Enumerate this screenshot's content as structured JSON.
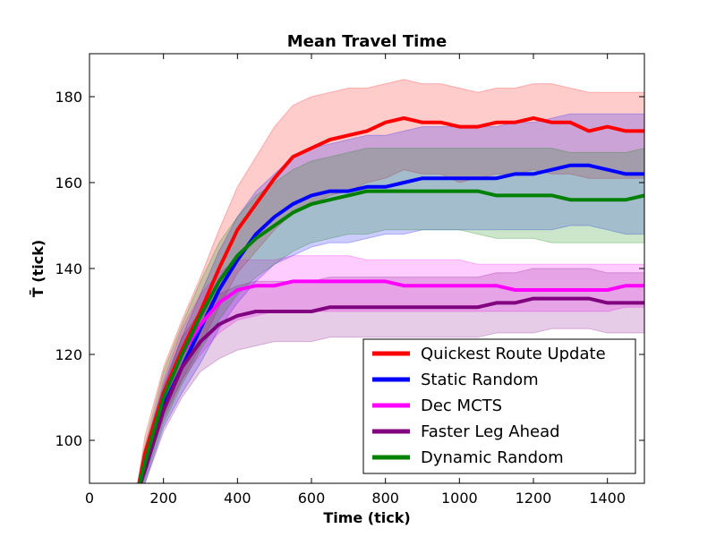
{
  "chart_data": {
    "type": "line",
    "title": "Mean Travel Time",
    "xlabel": "Time (tick)",
    "ylabel": "T̄  (tick)",
    "xlim": [
      0,
      1500
    ],
    "ylim": [
      90,
      190
    ],
    "xticks": [
      0,
      200,
      400,
      600,
      800,
      1000,
      1200,
      1400
    ],
    "yticks": [
      100,
      120,
      140,
      160,
      180
    ],
    "grid": false,
    "legend_position": "lower-right",
    "x": [
      130,
      150,
      200,
      250,
      300,
      350,
      400,
      450,
      500,
      550,
      600,
      650,
      700,
      750,
      800,
      850,
      900,
      950,
      1000,
      1050,
      1100,
      1150,
      1200,
      1250,
      1300,
      1350,
      1400,
      1450,
      1500
    ],
    "series": [
      {
        "name": "Quickest Route Update",
        "color": "#ff0000",
        "values": [
          88,
          97,
          111,
          121,
          130,
          140,
          149,
          155,
          161,
          166,
          168,
          170,
          171,
          172,
          174,
          175,
          174,
          174,
          173,
          173,
          174,
          174,
          175,
          174,
          174,
          172,
          173,
          172,
          172
        ],
        "lower": [
          86,
          93,
          105,
          114,
          122,
          131,
          139,
          144,
          149,
          153,
          155,
          157,
          158,
          160,
          161,
          163,
          162,
          162,
          160,
          161,
          162,
          162,
          163,
          162,
          162,
          161,
          161,
          161,
          161
        ],
        "upper": [
          90,
          101,
          117,
          128,
          138,
          149,
          159,
          166,
          173,
          178,
          180,
          181,
          182,
          182,
          183,
          184,
          183,
          183,
          182,
          181,
          182,
          182,
          183,
          183,
          182,
          181,
          181,
          181,
          181
        ]
      },
      {
        "name": "Static Random",
        "color": "#0000ff",
        "values": [
          88,
          94,
          108,
          117,
          126,
          135,
          142,
          148,
          152,
          155,
          157,
          158,
          158,
          159,
          159,
          160,
          161,
          161,
          161,
          161,
          161,
          162,
          162,
          163,
          164,
          164,
          163,
          162,
          162
        ],
        "lower": [
          86,
          90,
          103,
          111,
          118,
          126,
          132,
          137,
          141,
          143,
          145,
          146,
          146,
          147,
          148,
          148,
          149,
          149,
          149,
          149,
          149,
          149,
          149,
          149,
          150,
          150,
          149,
          148,
          148
        ],
        "upper": [
          90,
          98,
          113,
          124,
          134,
          144,
          152,
          158,
          162,
          166,
          168,
          169,
          170,
          171,
          171,
          172,
          173,
          173,
          173,
          173,
          173,
          174,
          174,
          175,
          176,
          176,
          176,
          176,
          176
        ]
      },
      {
        "name": "Dec MCTS",
        "color": "#ff00ff",
        "values": [
          88,
          95,
          110,
          120,
          127,
          132,
          135,
          136,
          136,
          137,
          137,
          137,
          137,
          137,
          137,
          136,
          136,
          136,
          136,
          136,
          136,
          135,
          135,
          135,
          135,
          135,
          135,
          136,
          136
        ],
        "lower": [
          86,
          92,
          106,
          114,
          120,
          125,
          128,
          129,
          130,
          130,
          130,
          130,
          130,
          130,
          130,
          130,
          130,
          130,
          130,
          130,
          130,
          130,
          130,
          130,
          130,
          130,
          130,
          131,
          131
        ],
        "upper": [
          90,
          98,
          114,
          126,
          134,
          139,
          142,
          142,
          142,
          143,
          143,
          143,
          143,
          142,
          142,
          142,
          142,
          142,
          142,
          141,
          141,
          141,
          141,
          141,
          141,
          141,
          141,
          141,
          141
        ]
      },
      {
        "name": "Faster Leg Ahead",
        "color": "#800080",
        "values": [
          88,
          93,
          107,
          117,
          123,
          127,
          129,
          130,
          130,
          130,
          130,
          131,
          131,
          131,
          131,
          131,
          131,
          131,
          131,
          131,
          132,
          132,
          133,
          133,
          133,
          133,
          132,
          132,
          132
        ],
        "lower": [
          86,
          90,
          102,
          110,
          116,
          119,
          121,
          122,
          123,
          123,
          123,
          124,
          124,
          124,
          124,
          124,
          124,
          124,
          124,
          124,
          125,
          125,
          125,
          126,
          126,
          126,
          125,
          125,
          125
        ],
        "upper": [
          90,
          96,
          112,
          124,
          130,
          134,
          136,
          137,
          137,
          137,
          137,
          138,
          138,
          138,
          138,
          138,
          138,
          138,
          138,
          138,
          139,
          139,
          140,
          140,
          140,
          140,
          139,
          139,
          139
        ]
      },
      {
        "name": "Dynamic Random",
        "color": "#008000",
        "values": [
          88,
          95,
          110,
          120,
          129,
          137,
          143,
          147,
          150,
          153,
          155,
          156,
          157,
          158,
          158,
          158,
          158,
          158,
          158,
          158,
          157,
          157,
          157,
          157,
          156,
          156,
          156,
          156,
          157
        ],
        "lower": [
          86,
          91,
          104,
          113,
          121,
          128,
          134,
          138,
          141,
          144,
          146,
          147,
          148,
          148,
          149,
          149,
          149,
          149,
          149,
          148,
          147,
          147,
          147,
          146,
          146,
          146,
          146,
          146,
          146
        ],
        "upper": [
          90,
          99,
          116,
          127,
          137,
          146,
          152,
          157,
          160,
          163,
          165,
          166,
          167,
          168,
          168,
          168,
          168,
          168,
          168,
          168,
          168,
          168,
          168,
          168,
          167,
          167,
          167,
          167,
          168
        ]
      }
    ]
  }
}
